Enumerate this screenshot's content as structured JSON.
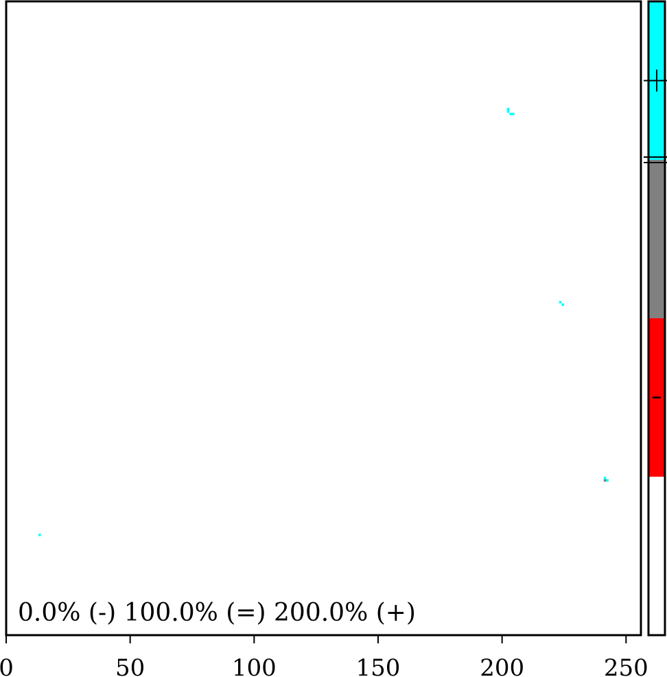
{
  "chart_data": {
    "type": "heatmap",
    "title": "",
    "xlabel": "",
    "ylabel": "",
    "xlim": [
      0,
      256
    ],
    "ylim": [
      0,
      256
    ],
    "x_ticks": [
      0,
      50,
      100,
      150,
      200,
      250
    ],
    "grid": false,
    "annotation": "0.0% (-) 100.0% (=) 200.0% (+)",
    "colorbar": {
      "categories": [
        {
          "symbol": "+",
          "color": "#00ffff"
        },
        {
          "symbol": "=",
          "color": "#808080"
        },
        {
          "symbol": "-",
          "color": "#ff0000"
        },
        {
          "symbol": "",
          "color": "#ffffff"
        }
      ]
    },
    "points": [
      {
        "x": 202,
        "y": 211,
        "color": "#00ffff"
      },
      {
        "x": 203,
        "y": 210,
        "color": "#00ffff"
      },
      {
        "x": 204,
        "y": 210,
        "color": "#00ffff"
      },
      {
        "x": 202,
        "y": 212,
        "color": "#00ffff"
      },
      {
        "x": 223,
        "y": 134,
        "color": "#00ffff"
      },
      {
        "x": 224,
        "y": 133,
        "color": "#00ffff"
      },
      {
        "x": 241,
        "y": 62,
        "color": "#808080"
      },
      {
        "x": 242,
        "y": 62,
        "color": "#00ffff"
      },
      {
        "x": 241,
        "y": 63,
        "color": "#00ffff"
      },
      {
        "x": 13,
        "y": 40,
        "color": "#00ffff"
      }
    ]
  }
}
